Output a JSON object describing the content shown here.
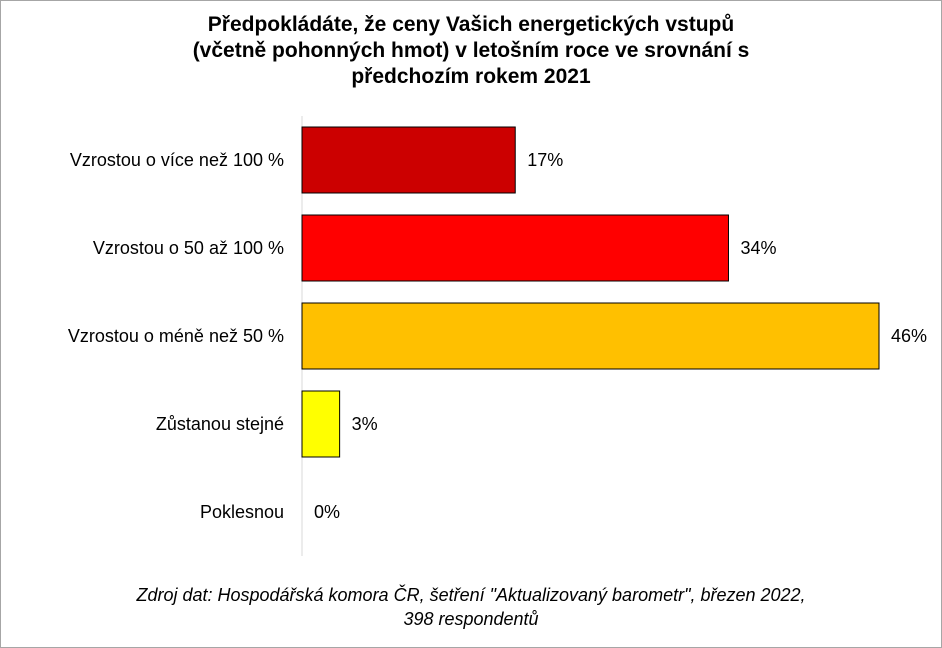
{
  "chart_data": {
    "type": "bar",
    "orientation": "horizontal",
    "title_lines": [
      "Předpokládáte, že ceny Vašich energetických vstupů",
      "(včetně pohonných hmot) v letošním roce ve srovnání s",
      "předchozím rokem 2021"
    ],
    "categories": [
      "Vzrostou o více než 100 %",
      "Vzrostou o 50 až 100 %",
      "Vzrostou o méně než 50 %",
      "Zůstanou stejné",
      "Poklesnou"
    ],
    "values": [
      17,
      34,
      46,
      3,
      0
    ],
    "value_labels": [
      "17%",
      "34%",
      "46%",
      "3%",
      "0%"
    ],
    "colors": [
      "#cc0000",
      "#ff0000",
      "#ffc000",
      "#ffff00",
      "#ffff00"
    ],
    "xlim": [
      0,
      46
    ],
    "grid": false,
    "legend": "none"
  },
  "source_lines": [
    "Zdroj dat: Hospodářská komora ČR, šetření \"Aktualizovaný barometr\", březen 2022,",
    "398 respondentů"
  ]
}
